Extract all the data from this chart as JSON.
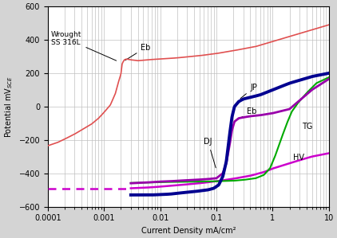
{
  "xlabel": "Current Density mA/cm²",
  "xlim": [
    0.0001,
    10
  ],
  "ylim": [
    -600,
    600
  ],
  "yticks": [
    -600,
    -400,
    -200,
    0,
    200,
    400,
    600
  ],
  "bg_color": "#d4d4d4",
  "plot_bg": "#ffffff",
  "grid_color": "#c0c0c0",
  "wrought_color": "#e05050",
  "JP_color": "#000090",
  "DJ_color": "#9900aa",
  "TG_color": "#00aa00",
  "HV_color": "#cc00cc",
  "font_size": 7,
  "tick_font_size": 7
}
